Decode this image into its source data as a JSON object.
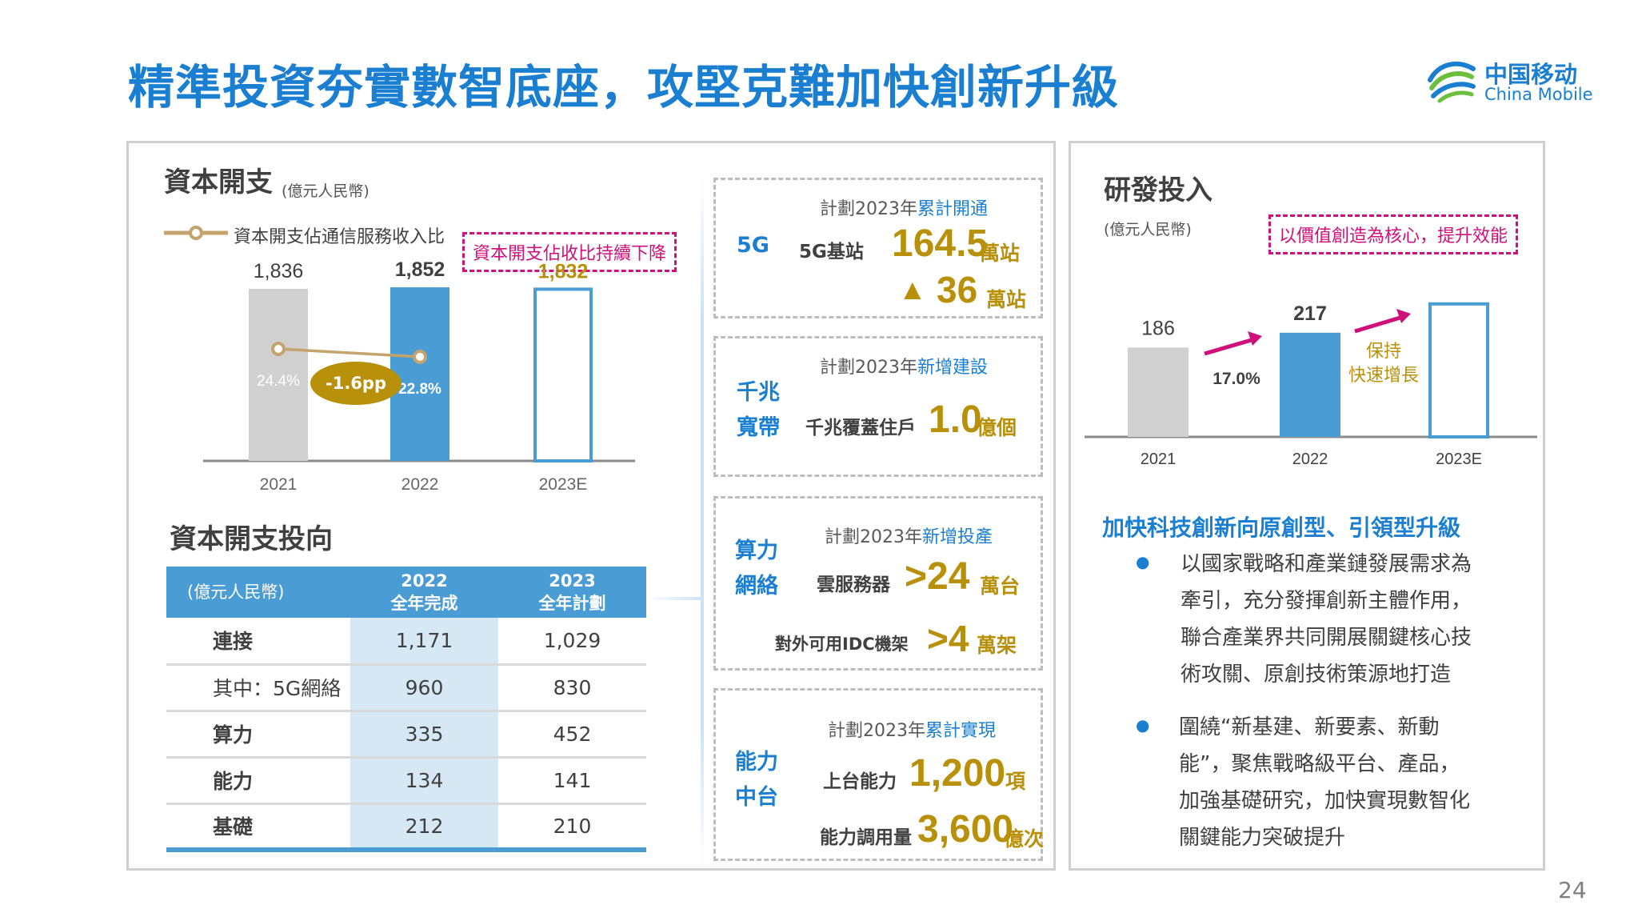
{
  "title": "精準投資夯實數智底座，攻堅克難加快創新升級",
  "logo": {
    "cn": "中国移动",
    "en": "China Mobile"
  },
  "page_number": "24",
  "capex": {
    "heading": "資本開支",
    "unit": "(億元人民幣)",
    "legend": "資本開支佔通信服務收入比",
    "badge": "資本開支佔收比持續下降",
    "ratio_change": "-1.6pp"
  },
  "rd": {
    "heading": "研發投入",
    "unit": "(億元人民幣)",
    "badge": "以價值創造為核心，提升效能",
    "ratio_label": "17.0%",
    "growth_note_1": "保持",
    "growth_note_2": "快速增長",
    "subheading": "加快科技創新向原創型、引領型升級",
    "bullets": [
      [
        "以國家戰略和產業鏈發展需求為",
        "牽引，充分發揮創新主體作用，",
        "聯合產業界共同開展關鍵核心技",
        "術攻關、原創技術策源地打造"
      ],
      [
        "圍繞“新基建、新要素、新動",
        "能”，聚焦戰略級平台、產品，",
        "加強基礎研究，加快實現數智化",
        "關鍵能力突破提升"
      ]
    ]
  },
  "direction": {
    "heading": "資本開支投向",
    "header_unit": "(億元人民幣)",
    "col_2022_a": "2022",
    "col_2022_b": "全年完成",
    "col_2023_a": "2023",
    "col_2023_b": "全年計劃",
    "rows": [
      {
        "label": "連接",
        "v2022": "1,171",
        "v2023": "1,029"
      },
      {
        "label": "其中：5G網絡",
        "v2022": "960",
        "v2023": "830"
      },
      {
        "label": "算力",
        "v2022": "335",
        "v2023": "452"
      },
      {
        "label": "能力",
        "v2022": "134",
        "v2023": "141"
      },
      {
        "label": "基礎",
        "v2022": "212",
        "v2023": "210"
      }
    ]
  },
  "plans": [
    {
      "tag": [
        "5G"
      ],
      "cap_pre": "計劃2023年",
      "cap_hl": "累計開通",
      "items": [
        {
          "label": "5G基站",
          "value": "164.5",
          "unit": "萬站"
        },
        {
          "label": "",
          "value": "36",
          "unit": "萬站",
          "prefix": "▲"
        }
      ]
    },
    {
      "tag": [
        "千兆",
        "寬帶"
      ],
      "cap_pre": "計劃2023年",
      "cap_hl": "新增建設",
      "items": [
        {
          "label": "千兆覆蓋住戶",
          "value": "1.0",
          "unit": "億個"
        }
      ]
    },
    {
      "tag": [
        "算力",
        "網絡"
      ],
      "cap_pre": "計劃2023年",
      "cap_hl": "新增投產",
      "items": [
        {
          "label": "雲服務器",
          "value": ">24",
          "unit": "萬台"
        },
        {
          "label": "對外可用IDC機架",
          "value": ">4",
          "unit": "萬架"
        }
      ]
    },
    {
      "tag": [
        "能力",
        "中台"
      ],
      "cap_pre": "計劃2023年",
      "cap_hl": "累計實現",
      "items": [
        {
          "label": "上台能力",
          "value": "1,200",
          "unit": "項"
        },
        {
          "label": "能力調用量",
          "value": "3,600",
          "unit": "億次"
        }
      ]
    }
  ],
  "colors": {
    "gray_bar": "#d0d0d0",
    "blue_bar": "#4a9cd4",
    "gold": "#b8900a",
    "accent_blue": "#1a7fd0",
    "magenta": "#d0107a"
  },
  "chart_data": [
    {
      "type": "bar",
      "categories": [
        "2021",
        "2022",
        "2023E"
      ],
      "values": [
        1836,
        1852,
        1832
      ],
      "value_labels": [
        "1,836",
        "1,852",
        "1,832"
      ],
      "title": "資本開支",
      "ylabel": "(億元人民幣)",
      "ylim": [
        0,
        2100
      ],
      "grid": false,
      "line_series": {
        "name": "資本開支佔通信服務收入比",
        "categories": [
          "2021",
          "2022"
        ],
        "values": [
          24.4,
          22.8
        ],
        "labels": [
          "24.4%",
          "22.8%"
        ]
      }
    },
    {
      "type": "bar",
      "categories": [
        "2021",
        "2022",
        "2023E"
      ],
      "values": [
        186,
        217,
        null
      ],
      "value_labels": [
        "186",
        "217",
        ""
      ],
      "title": "研發投入",
      "ylabel": "(億元人民幣)",
      "grid": false
    }
  ]
}
